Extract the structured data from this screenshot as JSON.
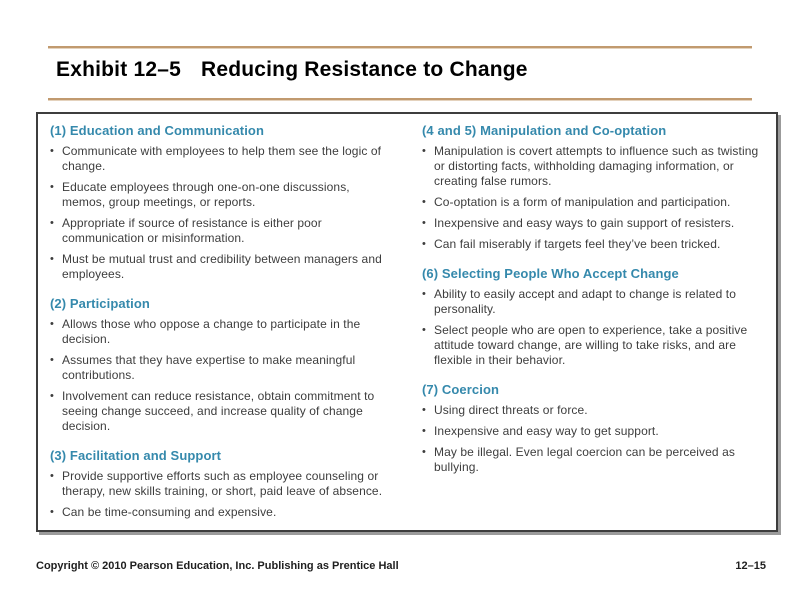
{
  "title": {
    "exhibit_label": "Exhibit 12–5",
    "text": "Reducing Resistance to Change"
  },
  "glyphs": {
    "bullet": "•"
  },
  "colors": {
    "heading_teal": "#3589ac",
    "body_text": "#3d3d3d",
    "rule_tan": "#c19a6f",
    "box_border": "#3d3d3d",
    "box_shadow": "#9b9b9b"
  },
  "columns": [
    {
      "sections": [
        {
          "heading": "(1) Education and Communication",
          "bullets": [
            "Communicate with employees to help them see the logic of change.",
            "Educate employees through one-on-one discussions, memos, group meetings, or reports.",
            "Appropriate if source of resistance is either poor communication or misinformation.",
            "Must be mutual trust and credibility between managers and employees."
          ]
        },
        {
          "heading": "(2) Participation",
          "bullets": [
            "Allows those who oppose a change to participate in the decision.",
            "Assumes that they have expertise to make meaningful contributions.",
            "Involvement can reduce resistance, obtain commitment to seeing change succeed, and increase quality of change decision."
          ]
        },
        {
          "heading": "(3) Facilitation and Support",
          "bullets": [
            "Provide supportive efforts such as employee counseling or therapy, new skills training, or short, paid leave of absence.",
            "Can be time-consuming and expensive."
          ]
        }
      ]
    },
    {
      "sections": [
        {
          "heading": "(4 and 5) Manipulation and Co-optation",
          "bullets": [
            "Manipulation is covert attempts to influence such as twisting or distorting facts, withholding damaging information, or creating false rumors.",
            "Co-optation is a form of manipulation and participation.",
            "Inexpensive and easy ways to gain support of resisters.",
            "Can fail miserably if targets feel they’ve been tricked."
          ]
        },
        {
          "heading": "(6) Selecting People Who Accept Change",
          "bullets": [
            "Ability to easily accept and adapt to change is related to personality.",
            "Select people who are open to experience, take a positive attitude toward change, are willing to take risks, and are flexible in their behavior."
          ]
        },
        {
          "heading": "(7) Coercion",
          "bullets": [
            "Using direct threats or force.",
            "Inexpensive and easy way to get support.",
            "May be illegal. Even legal coercion can be perceived as bullying."
          ]
        }
      ]
    }
  ],
  "footer": {
    "copyright": "Copyright © 2010 Pearson Education, Inc. Publishing as Prentice Hall",
    "page_number": "12–15"
  }
}
